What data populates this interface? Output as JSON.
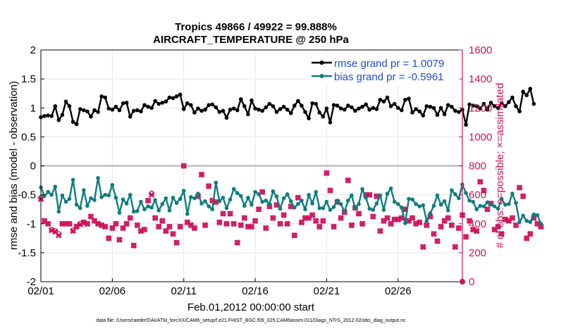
{
  "colors": {
    "rmse": "#000000",
    "bias": "#0f7d7d",
    "obs": "#d0105a",
    "rmse_legend_text": "#1a4cd8",
    "bias_legend_text": "#1a4cd8",
    "grid": "#e6e6e6",
    "zero_line": "#b0b0b0"
  },
  "chart_data": {
    "type": "line",
    "title_line1": "Tropics 49866 / 49922 = 99.888%",
    "title_line2": "AIRCRAFT_TEMPERATURE @ 250 hPa",
    "xlabel": "Feb.01,2012 00:00:00 start",
    "ylabel_left": "rmse and bias (model - observation)",
    "ylabel_right": "# of obs: o=possible; ×=assimilated",
    "x_tick_labels": [
      "02/01",
      "02/06",
      "02/11",
      "02/16",
      "02/21",
      "02/26"
    ],
    "x_tick_values": [
      0,
      5,
      10,
      15,
      20,
      25
    ],
    "xlim": [
      0,
      29.5
    ],
    "ylim_left": [
      -2,
      2
    ],
    "y_ticks_left": [
      -2,
      -1.5,
      -1,
      -0.5,
      0,
      0.5,
      1,
      1.5,
      2
    ],
    "y_tick_labels_left": [
      "-2",
      "-1.5",
      "-1",
      "-0.5",
      "0",
      "0.5",
      "1",
      "1.5",
      "2"
    ],
    "ylim_right": [
      0,
      1600
    ],
    "y_ticks_right": [
      0,
      200,
      400,
      600,
      800,
      1000,
      1200,
      1400,
      1600
    ],
    "y_tick_labels_right": [
      "0",
      "200",
      "400",
      "600",
      "800",
      "1000",
      "1200",
      "1400",
      "1600"
    ],
    "grid": true,
    "legend_position": "top-right",
    "x_step": 0.25,
    "series": [
      {
        "name": "rmse grand pr = 1.0079",
        "axis": "left",
        "marker": "circle",
        "values": [
          0.84,
          0.86,
          0.87,
          0.86,
          1.03,
          0.79,
          0.88,
          1.11,
          1.03,
          0.76,
          0.72,
          0.98,
          0.96,
          0.94,
          0.85,
          0.96,
          0.93,
          1.2,
          1.18,
          0.99,
          0.97,
          1.02,
          0.96,
          1.08,
          1.09,
          0.85,
          0.95,
          0.96,
          0.94,
          1.05,
          1.02,
          1.0,
          1.12,
          1.07,
          1.09,
          1.11,
          1.18,
          1.17,
          1.2,
          1.23,
          0.98,
          1.08,
          1.05,
          0.92,
          0.99,
          0.95,
          0.97,
          1.05,
          1.06,
          1.01,
          0.93,
          0.95,
          0.83,
          0.97,
          0.99,
          0.96,
          1.15,
          1.03,
          0.89,
          1.13,
          0.99,
          0.97,
          0.95,
          1.01,
          1.07,
          1.03,
          0.93,
          0.98,
          1.02,
          0.97,
          0.91,
          1.04,
          1.12,
          1.04,
          0.93,
          0.82,
          1.08,
          1.07,
          0.92,
          0.85,
          0.99,
          0.75,
          1.05,
          1.04,
          0.99,
          0.97,
          1.04,
          1.01,
          0.95,
          0.99,
          1.02,
          1.06,
          0.97,
          1.0,
          0.98,
          1.14,
          1.11,
          1.18,
          1.03,
          1.07,
          1.0,
          0.96,
          1.14,
          1.16,
          0.92,
          0.98,
          0.94,
          0.87,
          1.03,
          1.02,
          1.0,
          0.88,
          1.0,
          0.89,
          1.05,
          1.02,
          0.95,
          0.93,
          0.97,
          0.71,
          1.06,
          1.04,
          1.03,
          0.99,
          1.07,
          0.97,
          1.09,
          1.03,
          1.0,
          1.08,
          1.03,
          1.1,
          1.18,
          1.03,
          0.94,
          1.28,
          1.22,
          1.33,
          1.07
        ],
        "line_color": "#000000"
      },
      {
        "name": "bias grand pr = -0.5961",
        "axis": "left",
        "marker": "circle",
        "values": [
          -0.37,
          -0.52,
          -0.45,
          -0.5,
          -0.36,
          -0.79,
          -0.51,
          -0.62,
          -0.57,
          -0.24,
          -0.67,
          -0.73,
          -0.42,
          -0.69,
          -0.56,
          -0.59,
          -0.21,
          -0.54,
          -0.5,
          -0.51,
          -0.33,
          -0.55,
          -0.81,
          -0.58,
          -0.65,
          -0.5,
          -0.79,
          -0.78,
          -0.62,
          -0.75,
          -0.7,
          -0.72,
          -0.59,
          -0.77,
          -0.66,
          -0.56,
          -0.77,
          -0.55,
          -0.64,
          -0.57,
          -0.43,
          -0.83,
          -0.54,
          -0.56,
          -0.48,
          -0.65,
          -0.61,
          -0.7,
          -0.75,
          -0.29,
          -0.61,
          -0.55,
          -0.73,
          -0.58,
          -0.4,
          -0.47,
          -0.52,
          -0.69,
          -0.55,
          -0.67,
          -0.45,
          -0.49,
          -0.62,
          -0.6,
          -0.66,
          -0.44,
          -0.53,
          -0.74,
          -0.56,
          -0.49,
          -0.61,
          -0.72,
          -0.66,
          -0.6,
          -0.75,
          -0.5,
          -0.65,
          -0.45,
          -0.73,
          -0.73,
          -0.62,
          -0.76,
          -0.71,
          -0.6,
          -0.66,
          -0.79,
          -0.6,
          -0.51,
          -0.73,
          -0.66,
          -0.4,
          -0.55,
          -0.74,
          -0.76,
          -0.65,
          -0.51,
          -0.76,
          -0.48,
          -0.39,
          -0.62,
          -0.66,
          -0.72,
          -0.99,
          -0.57,
          -0.58,
          -0.66,
          -0.7,
          -0.68,
          -0.95,
          -0.82,
          -0.69,
          -0.51,
          -0.67,
          -0.61,
          -0.77,
          -0.42,
          -0.49,
          -0.56,
          -0.32,
          -0.47,
          -0.6,
          -0.62,
          -0.75,
          -0.69,
          -0.7,
          -0.63,
          -0.67,
          -0.7,
          -0.74,
          -0.57,
          -0.67,
          -0.66,
          -0.48,
          -0.64,
          -0.97,
          -0.86,
          -0.95,
          -0.97,
          -0.84,
          -0.85,
          -1.0
        ],
        "line_color": "#0f7d7d"
      },
      {
        "name": "# of obs assimilated",
        "axis": "right",
        "marker": "x",
        "values": [
          570,
          420,
          400,
          355,
          345,
          320,
          400,
          400,
          400,
          350,
          380,
          395,
          410,
          400,
          450,
          420,
          400,
          390,
          380,
          300,
          370,
          400,
          290,
          370,
          400,
          440,
          250,
          390,
          350,
          360,
          560,
          600,
          440,
          380,
          420,
          350,
          380,
          330,
          270,
          380,
          800,
          410,
          390,
          370,
          590,
          740,
          390,
          660,
          560,
          550,
          410,
          470,
          400,
          470,
          400,
          270,
          390,
          440,
          380,
          380,
          420,
          500,
          620,
          370,
          520,
          440,
          530,
          400,
          460,
          400,
          520,
          320,
          580,
          410,
          440,
          440,
          460,
          420,
          380,
          420,
          750,
          630,
          380,
          550,
          440,
          480,
          700,
          390,
          510,
          470,
          400,
          600,
          600,
          450,
          590,
          350,
          420,
          440,
          400,
          430,
          430,
          440,
          500,
          420,
          440,
          400,
          410,
          240,
          390,
          450,
          330,
          280,
          380,
          420,
          440,
          390,
          240,
          370,
          460,
          310,
          420,
          360,
          350,
          690,
          630,
          500,
          540,
          360,
          380,
          330,
          430,
          420,
          440,
          390,
          650,
          590,
          300,
          330,
          440,
          400,
          380
        ]
      },
      {
        "name": "# of obs possible",
        "axis": "right",
        "marker": "o",
        "values": [
          580,
          420,
          400,
          360,
          350,
          330,
          400,
          400,
          400,
          355,
          380,
          400,
          410,
          400,
          450,
          420,
          400,
          390,
          380,
          300,
          370,
          400,
          290,
          370,
          400,
          440,
          250,
          390,
          350,
          360,
          560,
          610,
          440,
          380,
          420,
          350,
          380,
          330,
          270,
          380,
          800,
          410,
          390,
          370,
          590,
          740,
          390,
          660,
          560,
          550,
          410,
          470,
          400,
          470,
          400,
          270,
          390,
          440,
          380,
          380,
          420,
          500,
          620,
          370,
          520,
          440,
          530,
          400,
          460,
          400,
          520,
          320,
          580,
          410,
          440,
          440,
          460,
          420,
          380,
          420,
          750,
          630,
          380,
          550,
          440,
          480,
          700,
          390,
          510,
          470,
          400,
          600,
          600,
          450,
          590,
          350,
          420,
          440,
          400,
          430,
          430,
          440,
          500,
          420,
          440,
          400,
          410,
          240,
          390,
          450,
          330,
          280,
          380,
          420,
          440,
          390,
          240,
          370,
          460,
          310,
          420,
          360,
          350,
          690,
          630,
          500,
          540,
          360,
          380,
          330,
          430,
          420,
          440,
          390,
          650,
          590,
          300,
          330,
          440,
          400,
          380
        ]
      }
    ]
  },
  "footer": "data file: /Users/raeder/DAI/ATM_forcXX/CAM6_setup/f.e21.FHIST_BGC.f09_025.CAM6assim.011/Diags_NTrS_2012-02/obs_diag_output.nc"
}
